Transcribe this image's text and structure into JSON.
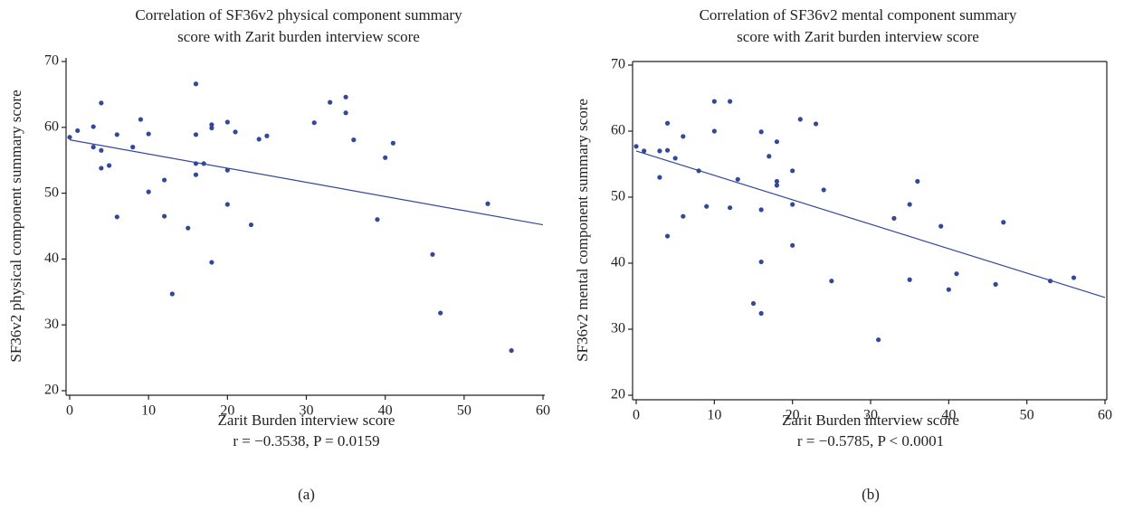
{
  "chart_data": [
    {
      "type": "scatter",
      "title": [
        "Correlation of SF36v2 physical component summary",
        "score with Zarit burden interview score"
      ],
      "xlabel": "Zarit Burden interview score",
      "ylabel": "SF36v2 physical component summary score",
      "stat": "r = −0.3538,  P = 0.0159",
      "caption": "(a)",
      "xlim": [
        0,
        60
      ],
      "ylim": [
        20,
        70
      ],
      "xticks": [
        0,
        10,
        20,
        30,
        40,
        50,
        60
      ],
      "yticks": [
        20,
        30,
        40,
        50,
        60,
        70
      ],
      "frame": false,
      "series": [
        {
          "color": "#34489a",
          "x": [
            0,
            1,
            3,
            3,
            4,
            4,
            4,
            5,
            6,
            6,
            8,
            9,
            10,
            10,
            12,
            12,
            13,
            15,
            16,
            16,
            16,
            16,
            17,
            18,
            18,
            18,
            20,
            20,
            20,
            21,
            23,
            24,
            25,
            31,
            33,
            35,
            35,
            36,
            39,
            40,
            41,
            46,
            47,
            53,
            56
          ],
          "values": [
            58.5,
            59.5,
            60.1,
            57,
            63.7,
            56.5,
            53.8,
            54.2,
            58.9,
            46.4,
            57,
            61.2,
            59,
            50.2,
            52,
            46.5,
            34.7,
            44.7,
            66.6,
            58.9,
            54.5,
            52.8,
            54.5,
            60.4,
            59.9,
            39.5,
            60.8,
            53.5,
            48.3,
            59.3,
            45.2,
            58.2,
            58.7,
            60.7,
            63.8,
            64.6,
            62.2,
            58.1,
            46,
            55.4,
            57.6,
            40.7,
            31.8,
            48.4,
            26.1
          ]
        }
      ],
      "trend": {
        "color": "#34489a",
        "x": [
          0,
          60
        ],
        "values": [
          58.1,
          45.2
        ]
      }
    },
    {
      "type": "scatter",
      "title": [
        "Correlation of SF36v2 mental component summary",
        "score with Zarit burden interview score"
      ],
      "xlabel": "Zarit Burden interview score",
      "ylabel": "SF36v2 mental component summary score",
      "stat": "r = −0.5785,  P < 0.0001",
      "caption": "(b)",
      "xlim": [
        0,
        60
      ],
      "ylim": [
        20,
        70
      ],
      "xticks": [
        0,
        10,
        20,
        30,
        40,
        50,
        60
      ],
      "yticks": [
        20,
        30,
        40,
        50,
        60,
        70
      ],
      "frame": true,
      "series": [
        {
          "color": "#34489a",
          "x": [
            0,
            1,
            3,
            3,
            4,
            4,
            4,
            5,
            6,
            6,
            8,
            9,
            10,
            10,
            12,
            12,
            13,
            15,
            16,
            16,
            16,
            16,
            17,
            18,
            18,
            18,
            20,
            20,
            20,
            21,
            23,
            24,
            25,
            31,
            33,
            35,
            35,
            36,
            39,
            40,
            41,
            46,
            47,
            53,
            56
          ],
          "values": [
            57.7,
            57,
            57,
            53,
            61.2,
            57.1,
            44.1,
            55.9,
            59.2,
            47.1,
            54,
            48.6,
            64.5,
            60,
            64.5,
            48.4,
            52.7,
            33.9,
            59.9,
            48.1,
            40.2,
            32.4,
            56.2,
            58.4,
            52.4,
            51.8,
            54,
            48.9,
            42.7,
            61.8,
            61.1,
            51.1,
            37.3,
            28.4,
            46.8,
            48.9,
            37.5,
            52.4,
            45.6,
            36,
            38.4,
            36.8,
            46.2,
            37.3,
            37.8
          ]
        }
      ],
      "trend": {
        "color": "#34489a",
        "x": [
          0,
          60
        ],
        "values": [
          57,
          34.8
        ]
      }
    }
  ]
}
